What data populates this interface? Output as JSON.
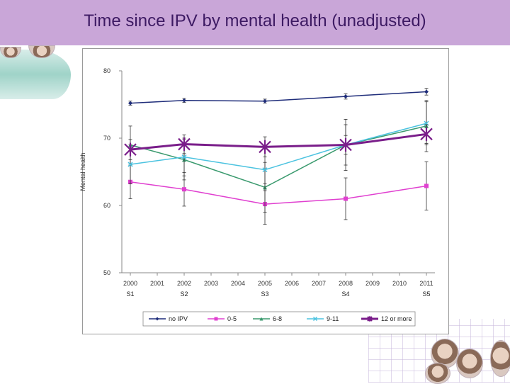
{
  "slide": {
    "title": "Time since IPV by mental health (unadjusted)"
  },
  "colors": {
    "title_bar": "#c9a6d8",
    "title_text": "#3d1a63"
  },
  "chart_data": {
    "type": "line",
    "title": "",
    "xlabel": "",
    "ylabel": "Mental health",
    "x": [
      2000,
      2001,
      2002,
      2003,
      2004,
      2005,
      2006,
      2007,
      2008,
      2009,
      2010,
      2011
    ],
    "x_tick_labels": [
      "2000",
      "2001",
      "2002",
      "2003",
      "2004",
      "2005",
      "2006",
      "2007",
      "2008",
      "2009",
      "2010",
      "2011"
    ],
    "ylim": [
      50,
      80
    ],
    "y_ticks": [
      50,
      60,
      70,
      80
    ],
    "grid": false,
    "legend_position": "bottom",
    "wave_labels": [
      {
        "label": "S1",
        "x": 2000
      },
      {
        "label": "S2",
        "x": 2002
      },
      {
        "label": "S3",
        "x": 2005
      },
      {
        "label": "S4",
        "x": 2008
      },
      {
        "label": "S5",
        "x": 2011
      }
    ],
    "series": [
      {
        "name": "no IPV",
        "color": "#1f2d7a",
        "marker": "diamond",
        "x": [
          2000,
          2002,
          2005,
          2008,
          2011
        ],
        "values": [
          75.2,
          75.6,
          75.5,
          76.2,
          76.9
        ],
        "err_low": [
          74.9,
          75.3,
          75.2,
          75.8,
          76.4
        ],
        "err_high": [
          75.5,
          75.9,
          75.8,
          76.6,
          77.4
        ]
      },
      {
        "name": "0-5",
        "color": "#e040d0",
        "marker": "square",
        "x": [
          2000,
          2002,
          2005,
          2008,
          2011
        ],
        "values": [
          63.5,
          62.4,
          60.2,
          61.0,
          62.9
        ],
        "err_low": [
          61.0,
          59.9,
          57.2,
          57.9,
          59.3
        ],
        "err_high": [
          66.0,
          64.9,
          63.2,
          64.1,
          66.5
        ]
      },
      {
        "name": "6-8",
        "color": "#3a9a6e",
        "marker": "triangle",
        "x": [
          2000,
          2002,
          2005,
          2008,
          2011
        ],
        "values": [
          69.0,
          66.8,
          62.7,
          69.0,
          71.8
        ],
        "err_low": [
          66.0,
          63.8,
          59.0,
          65.2,
          68.0
        ],
        "err_high": [
          71.8,
          69.8,
          66.4,
          72.8,
          75.6
        ]
      },
      {
        "name": "9-11",
        "color": "#4cc3e0",
        "marker": "x",
        "x": [
          2000,
          2002,
          2005,
          2008,
          2011
        ],
        "values": [
          66.1,
          67.2,
          65.3,
          69.0,
          72.2
        ],
        "err_low": [
          63.2,
          64.4,
          62.2,
          66.0,
          69.0
        ],
        "err_high": [
          69.0,
          70.0,
          68.4,
          72.0,
          75.4
        ]
      },
      {
        "name": "12 or more",
        "color": "#7a1e8a",
        "marker": "star",
        "x": [
          2000,
          2002,
          2005,
          2008,
          2011
        ],
        "values": [
          68.3,
          69.1,
          68.7,
          69.0,
          70.6
        ],
        "err_low": [
          66.8,
          67.7,
          67.2,
          67.6,
          69.2
        ],
        "err_high": [
          69.8,
          70.5,
          70.2,
          70.4,
          72.0
        ]
      }
    ]
  }
}
